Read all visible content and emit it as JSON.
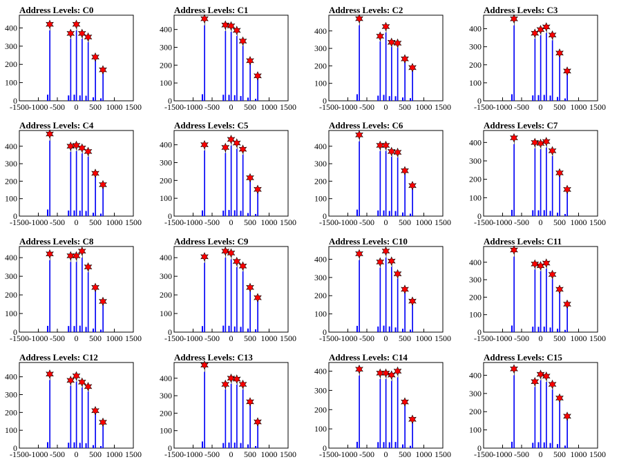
{
  "chart_data": {
    "type": "bar",
    "xlim": [
      -1500,
      1500
    ],
    "x_ticks": [
      -1500,
      -1000,
      -500,
      0,
      500,
      1000,
      1500
    ],
    "x_tick_labels": [
      "-1500",
      "-1000",
      "-500",
      "0",
      "500",
      "1000",
      "1500"
    ],
    "colors": {
      "bars": "#0000ff",
      "markers": "#ff0000",
      "axes": "#000000"
    },
    "marker": "star",
    "panels": [
      {
        "title": "Address Levels: C0",
        "ylim": [
          0,
          470
        ],
        "y_ticks": [
          0,
          100,
          200,
          300,
          400
        ],
        "peaks": [
          {
            "x": -700,
            "y": 420
          },
          {
            "x": -150,
            "y": 370
          },
          {
            "x": 0,
            "y": 420
          },
          {
            "x": 150,
            "y": 370
          },
          {
            "x": 310,
            "y": 350
          },
          {
            "x": 500,
            "y": 240
          },
          {
            "x": 700,
            "y": 170
          }
        ]
      },
      {
        "title": "Address Levels: C1",
        "ylim": [
          0,
          480
        ],
        "y_ticks": [
          0,
          100,
          200,
          300,
          400
        ],
        "peaks": [
          {
            "x": -700,
            "y": 460
          },
          {
            "x": -150,
            "y": 425
          },
          {
            "x": 0,
            "y": 420
          },
          {
            "x": 150,
            "y": 395
          },
          {
            "x": 310,
            "y": 335
          },
          {
            "x": 500,
            "y": 225
          },
          {
            "x": 700,
            "y": 140
          }
        ]
      },
      {
        "title": "Address Levels: C2",
        "ylim": [
          0,
          490
        ],
        "y_ticks": [
          0,
          100,
          200,
          300,
          400
        ],
        "peaks": [
          {
            "x": -700,
            "y": 470
          },
          {
            "x": -150,
            "y": 370
          },
          {
            "x": 0,
            "y": 425
          },
          {
            "x": 150,
            "y": 335
          },
          {
            "x": 310,
            "y": 330
          },
          {
            "x": 500,
            "y": 240
          },
          {
            "x": 700,
            "y": 190
          }
        ]
      },
      {
        "title": "Address Levels: C3",
        "ylim": [
          0,
          475
        ],
        "y_ticks": [
          0,
          100,
          200,
          300,
          400
        ],
        "peaks": [
          {
            "x": -700,
            "y": 455
          },
          {
            "x": -150,
            "y": 375
          },
          {
            "x": 0,
            "y": 395
          },
          {
            "x": 150,
            "y": 410
          },
          {
            "x": 310,
            "y": 365
          },
          {
            "x": 500,
            "y": 265
          },
          {
            "x": 700,
            "y": 165
          }
        ]
      },
      {
        "title": "Address Levels: C4",
        "ylim": [
          0,
          490
        ],
        "y_ticks": [
          0,
          100,
          200,
          300,
          400
        ],
        "peaks": [
          {
            "x": -700,
            "y": 470
          },
          {
            "x": -150,
            "y": 400
          },
          {
            "x": 0,
            "y": 405
          },
          {
            "x": 150,
            "y": 390
          },
          {
            "x": 310,
            "y": 370
          },
          {
            "x": 500,
            "y": 245
          },
          {
            "x": 700,
            "y": 180
          }
        ]
      },
      {
        "title": "Address Levels: C5",
        "ylim": [
          0,
          480
        ],
        "y_ticks": [
          0,
          100,
          200,
          300,
          400
        ],
        "peaks": [
          {
            "x": -700,
            "y": 400
          },
          {
            "x": -150,
            "y": 385
          },
          {
            "x": 0,
            "y": 430
          },
          {
            "x": 150,
            "y": 410
          },
          {
            "x": 310,
            "y": 375
          },
          {
            "x": 500,
            "y": 215
          },
          {
            "x": 700,
            "y": 150
          }
        ]
      },
      {
        "title": "Address Levels: C6",
        "ylim": [
          0,
          490
        ],
        "y_ticks": [
          0,
          100,
          200,
          300,
          400
        ],
        "peaks": [
          {
            "x": -700,
            "y": 465
          },
          {
            "x": -150,
            "y": 405
          },
          {
            "x": 0,
            "y": 405
          },
          {
            "x": 150,
            "y": 370
          },
          {
            "x": 310,
            "y": 365
          },
          {
            "x": 500,
            "y": 260
          },
          {
            "x": 700,
            "y": 175
          }
        ]
      },
      {
        "title": "Address Levels: C7",
        "ylim": [
          0,
          465
        ],
        "y_ticks": [
          0,
          100,
          200,
          300,
          400
        ],
        "peaks": [
          {
            "x": -700,
            "y": 425
          },
          {
            "x": -150,
            "y": 400
          },
          {
            "x": 0,
            "y": 395
          },
          {
            "x": 150,
            "y": 405
          },
          {
            "x": 310,
            "y": 355
          },
          {
            "x": 500,
            "y": 235
          },
          {
            "x": 700,
            "y": 145
          }
        ]
      },
      {
        "title": "Address Levels: C8",
        "ylim": [
          0,
          460
        ],
        "y_ticks": [
          0,
          100,
          200,
          300,
          400
        ],
        "peaks": [
          {
            "x": -700,
            "y": 420
          },
          {
            "x": -150,
            "y": 410
          },
          {
            "x": 0,
            "y": 410
          },
          {
            "x": 150,
            "y": 435
          },
          {
            "x": 310,
            "y": 350
          },
          {
            "x": 500,
            "y": 240
          },
          {
            "x": 700,
            "y": 165
          }
        ]
      },
      {
        "title": "Address Levels: C9",
        "ylim": [
          0,
          460
        ],
        "y_ticks": [
          0,
          100,
          200,
          300,
          400
        ],
        "peaks": [
          {
            "x": -700,
            "y": 405
          },
          {
            "x": -150,
            "y": 435
          },
          {
            "x": 0,
            "y": 425
          },
          {
            "x": 150,
            "y": 380
          },
          {
            "x": 310,
            "y": 355
          },
          {
            "x": 500,
            "y": 240
          },
          {
            "x": 700,
            "y": 185
          }
        ]
      },
      {
        "title": "Address Levels: C10",
        "ylim": [
          0,
          470
        ],
        "y_ticks": [
          0,
          100,
          200,
          300,
          400
        ],
        "peaks": [
          {
            "x": -700,
            "y": 430
          },
          {
            "x": -150,
            "y": 385
          },
          {
            "x": 0,
            "y": 445
          },
          {
            "x": 150,
            "y": 390
          },
          {
            "x": 310,
            "y": 320
          },
          {
            "x": 500,
            "y": 235
          },
          {
            "x": 700,
            "y": 170
          }
        ]
      },
      {
        "title": "Address Levels: C11",
        "ylim": [
          0,
          490
        ],
        "y_ticks": [
          0,
          100,
          200,
          300,
          400
        ],
        "peaks": [
          {
            "x": -700,
            "y": 470
          },
          {
            "x": -150,
            "y": 390
          },
          {
            "x": 0,
            "y": 380
          },
          {
            "x": 150,
            "y": 395
          },
          {
            "x": 310,
            "y": 330
          },
          {
            "x": 500,
            "y": 245
          },
          {
            "x": 700,
            "y": 160
          }
        ]
      },
      {
        "title": "Address Levels: C12",
        "ylim": [
          0,
          480
        ],
        "y_ticks": [
          0,
          100,
          200,
          300,
          400
        ],
        "peaks": [
          {
            "x": -700,
            "y": 415
          },
          {
            "x": -150,
            "y": 380
          },
          {
            "x": 0,
            "y": 405
          },
          {
            "x": 150,
            "y": 370
          },
          {
            "x": 310,
            "y": 345
          },
          {
            "x": 500,
            "y": 210
          },
          {
            "x": 700,
            "y": 145
          }
        ]
      },
      {
        "title": "Address Levels: C13",
        "ylim": [
          0,
          490
        ],
        "y_ticks": [
          0,
          100,
          200,
          300,
          400
        ],
        "peaks": [
          {
            "x": -700,
            "y": 475
          },
          {
            "x": -150,
            "y": 365
          },
          {
            "x": 0,
            "y": 400
          },
          {
            "x": 150,
            "y": 395
          },
          {
            "x": 310,
            "y": 365
          },
          {
            "x": 500,
            "y": 265
          },
          {
            "x": 700,
            "y": 150
          }
        ]
      },
      {
        "title": "Address Levels: C14",
        "ylim": [
          0,
          445
        ],
        "y_ticks": [
          0,
          100,
          200,
          300,
          400
        ],
        "peaks": [
          {
            "x": -700,
            "y": 410
          },
          {
            "x": -150,
            "y": 390
          },
          {
            "x": 0,
            "y": 390
          },
          {
            "x": 150,
            "y": 380
          },
          {
            "x": 310,
            "y": 400
          },
          {
            "x": 500,
            "y": 240
          },
          {
            "x": 700,
            "y": 150
          }
        ]
      },
      {
        "title": "Address Levels: C15",
        "ylim": [
          0,
          470
        ],
        "y_ticks": [
          0,
          100,
          200,
          300,
          400
        ],
        "peaks": [
          {
            "x": -700,
            "y": 435
          },
          {
            "x": -150,
            "y": 365
          },
          {
            "x": 0,
            "y": 405
          },
          {
            "x": 150,
            "y": 395
          },
          {
            "x": 310,
            "y": 350
          },
          {
            "x": 500,
            "y": 275
          },
          {
            "x": 700,
            "y": 175
          }
        ]
      }
    ]
  }
}
